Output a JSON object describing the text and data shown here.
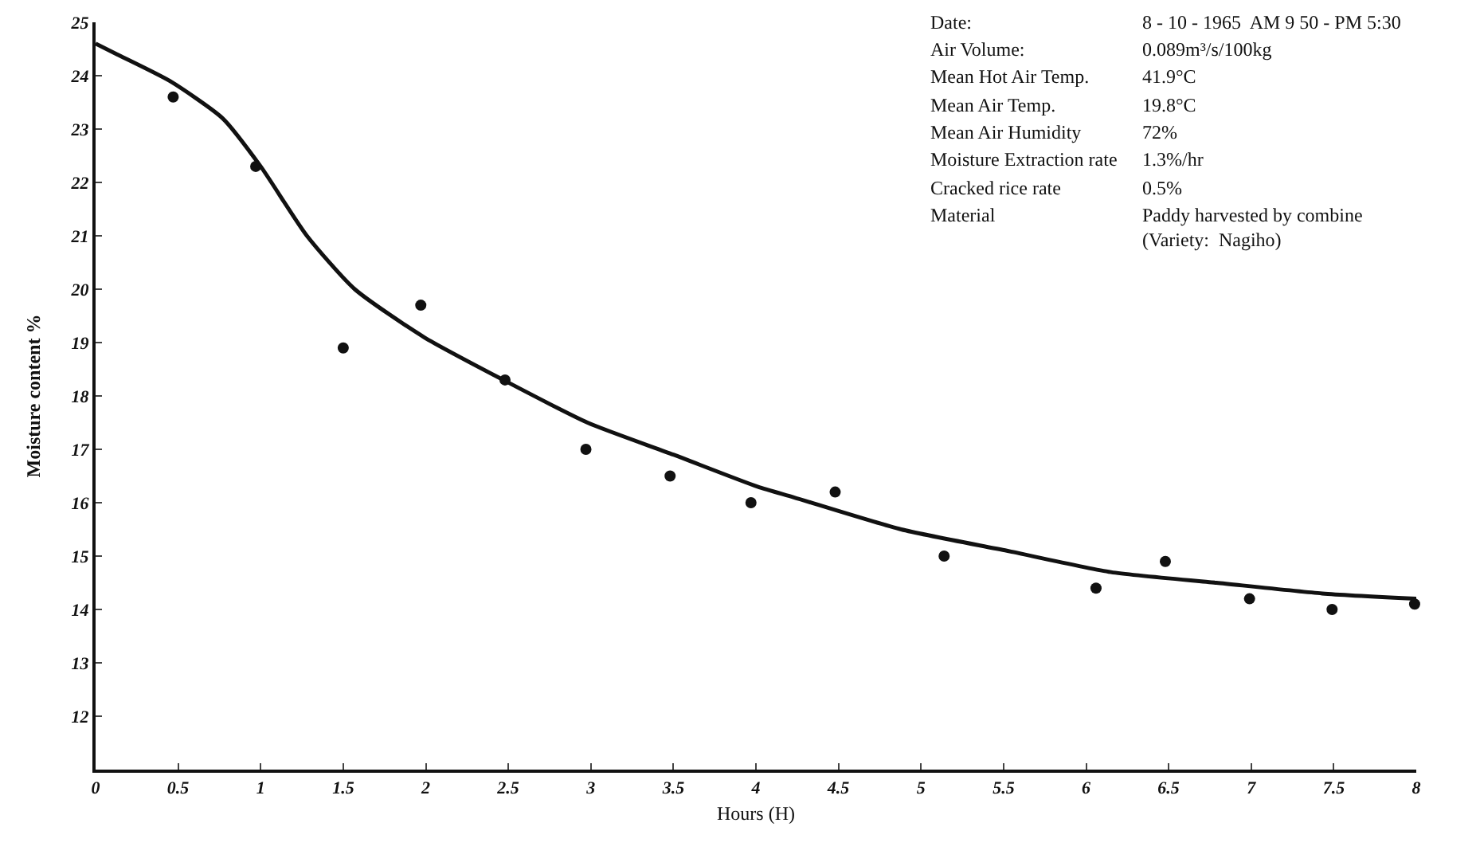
{
  "chart_data": {
    "type": "scatter",
    "xlabel": "Hours (H)",
    "ylabel": "Moisture content %",
    "xlim": [
      0,
      8
    ],
    "xticks": [
      0,
      0.5,
      1,
      1.5,
      2,
      2.5,
      3,
      3.5,
      4,
      4.5,
      5,
      5.5,
      6,
      6.5,
      7,
      7.5,
      8
    ],
    "ylim": [
      11,
      25
    ],
    "yticks": [
      12,
      13,
      14,
      15,
      16,
      17,
      18,
      19,
      20,
      21,
      22,
      23,
      24,
      25
    ],
    "grid": false,
    "series": [
      {
        "marker": "circle",
        "color": "#111111",
        "x": [
          0.47,
          0.97,
          1.5,
          1.97,
          2.48,
          2.97,
          3.48,
          3.97,
          4.48,
          5.14,
          6.06,
          6.48,
          6.99,
          7.49,
          7.99
        ],
        "values": [
          23.6,
          22.3,
          18.9,
          19.7,
          18.3,
          17.0,
          16.5,
          16.0,
          16.2,
          15.0,
          14.4,
          14.9,
          14.2,
          14.0,
          14.1
        ]
      },
      {
        "type": "line",
        "line_style": "solid",
        "color": "#111111",
        "x": [
          0,
          0.13,
          0.45,
          0.77,
          1.0,
          1.28,
          1.57,
          1.99,
          2.47,
          2.98,
          3.5,
          4.01,
          4.23,
          4.88,
          5.52,
          6.15,
          6.79,
          7.43,
          8.0
        ],
        "values": [
          24.6,
          24.4,
          23.9,
          23.2,
          22.3,
          21.0,
          20.0,
          19.1,
          18.3,
          17.5,
          16.9,
          16.3,
          16.1,
          15.5,
          15.1,
          14.7,
          14.5,
          14.3,
          14.2
        ]
      }
    ],
    "annotations": [
      "Date:",
      "8 - 10 - 1965  AM 9 50 - PM 5:30",
      "Air Volume:",
      "0.089m³/s/100kg",
      "Mean Hot Air Temp.",
      "41.9°C",
      "Mean Air Temp.",
      "19.8°C",
      "Mean Air Humidity",
      "72%",
      "Moisture Extraction rate",
      "1.3%/hr",
      "Cracked rice rate",
      "0.5%",
      "Material",
      "Paddy harvested by combine\n(Variety:  Nagiho)"
    ]
  }
}
